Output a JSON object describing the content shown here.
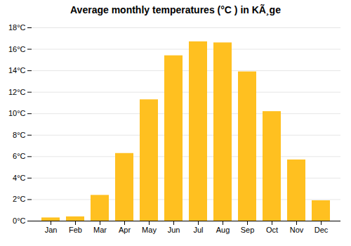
{
  "chart_data": {
    "type": "bar",
    "title": "Average monthly temperatures (°C ) in KÃ¸ge",
    "categories": [
      "Jan",
      "Feb",
      "Mar",
      "Apr",
      "May",
      "Jun",
      "Jul",
      "Aug",
      "Sep",
      "Oct",
      "Nov",
      "Dec"
    ],
    "values": [
      0.3,
      0.4,
      2.4,
      6.3,
      11.3,
      15.4,
      16.7,
      16.6,
      13.9,
      10.2,
      5.7,
      1.9
    ],
    "color": "#FFC020",
    "ylim": [
      0,
      18
    ],
    "yticks": [
      {
        "value": 0,
        "label": "0°C"
      },
      {
        "value": 2,
        "label": "2°C"
      },
      {
        "value": 4,
        "label": "4°C"
      },
      {
        "value": 6,
        "label": "6°C"
      },
      {
        "value": 8,
        "label": "8°C"
      },
      {
        "value": 10,
        "label": "10°C"
      },
      {
        "value": 12,
        "label": "12°C"
      },
      {
        "value": 14,
        "label": "14°C"
      },
      {
        "value": 16,
        "label": "16°C"
      },
      {
        "value": 18,
        "label": "18°C"
      }
    ],
    "grid": true
  }
}
